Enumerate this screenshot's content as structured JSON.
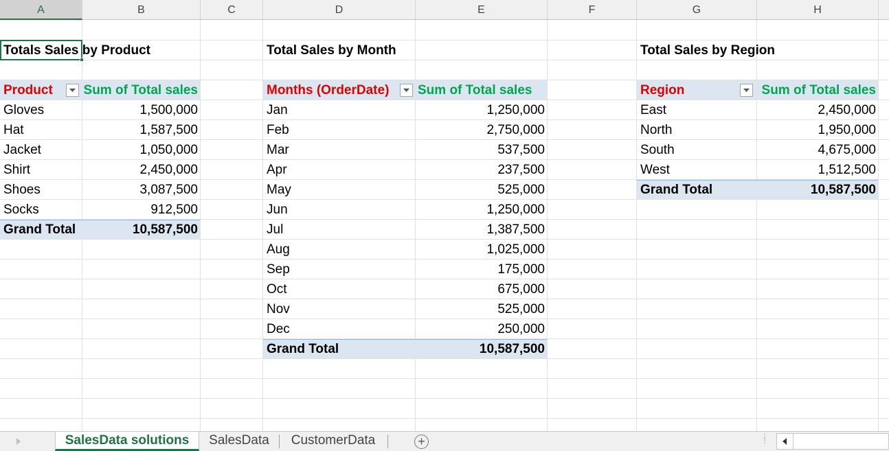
{
  "columns": [
    "A",
    "B",
    "C",
    "D",
    "E",
    "F",
    "G",
    "H"
  ],
  "titles": {
    "product": "Totals Sales by Product",
    "month": "Total  Sales  by Month",
    "region": "Total  Sales  by Region"
  },
  "pivot_product": {
    "row_header": "Product",
    "value_header": "Sum of Total sales",
    "rows": [
      {
        "label": "Gloves",
        "value": "1,500,000"
      },
      {
        "label": "Hat",
        "value": "1,587,500"
      },
      {
        "label": "Jacket",
        "value": "1,050,000"
      },
      {
        "label": "Shirt",
        "value": "2,450,000"
      },
      {
        "label": "Shoes",
        "value": "3,087,500"
      },
      {
        "label": "Socks",
        "value": "912,500"
      }
    ],
    "grand_total_label": "Grand Total",
    "grand_total_value": "10,587,500"
  },
  "pivot_month": {
    "row_header": "Months (OrderDate)",
    "value_header": "Sum of Total sales",
    "rows": [
      {
        "label": "Jan",
        "value": "1,250,000"
      },
      {
        "label": "Feb",
        "value": "2,750,000"
      },
      {
        "label": "Mar",
        "value": "537,500"
      },
      {
        "label": "Apr",
        "value": "237,500"
      },
      {
        "label": "May",
        "value": "525,000"
      },
      {
        "label": "Jun",
        "value": "1,250,000"
      },
      {
        "label": "Jul",
        "value": "1,387,500"
      },
      {
        "label": "Aug",
        "value": "1,025,000"
      },
      {
        "label": "Sep",
        "value": "175,000"
      },
      {
        "label": "Oct",
        "value": "675,000"
      },
      {
        "label": "Nov",
        "value": "525,000"
      },
      {
        "label": "Dec",
        "value": "250,000"
      }
    ],
    "grand_total_label": "Grand Total",
    "grand_total_value": "10,587,500"
  },
  "pivot_region": {
    "row_header": "Region",
    "value_header": "Sum of Total sales",
    "rows": [
      {
        "label": "East",
        "value": "2,450,000"
      },
      {
        "label": "North",
        "value": "1,950,000"
      },
      {
        "label": "South",
        "value": "4,675,000"
      },
      {
        "label": "West",
        "value": "1,512,500"
      }
    ],
    "grand_total_label": "Grand Total",
    "grand_total_value": "10,587,500"
  },
  "tabs": [
    {
      "label": "SalesData solutions",
      "active": true
    },
    {
      "label": "SalesData",
      "active": false
    },
    {
      "label": "CustomerData",
      "active": false
    }
  ],
  "add_sheet_symbol": "+",
  "colors": {
    "accent": "#217346",
    "row_header_text": "#e00000",
    "value_header_text": "#00a551",
    "pivot_band": "#dce6f1"
  },
  "icons": [
    "dropdown-arrow-icon",
    "add-sheet-icon",
    "scroll-left-icon",
    "sheet-nav-icon",
    "more-options-icon"
  ]
}
